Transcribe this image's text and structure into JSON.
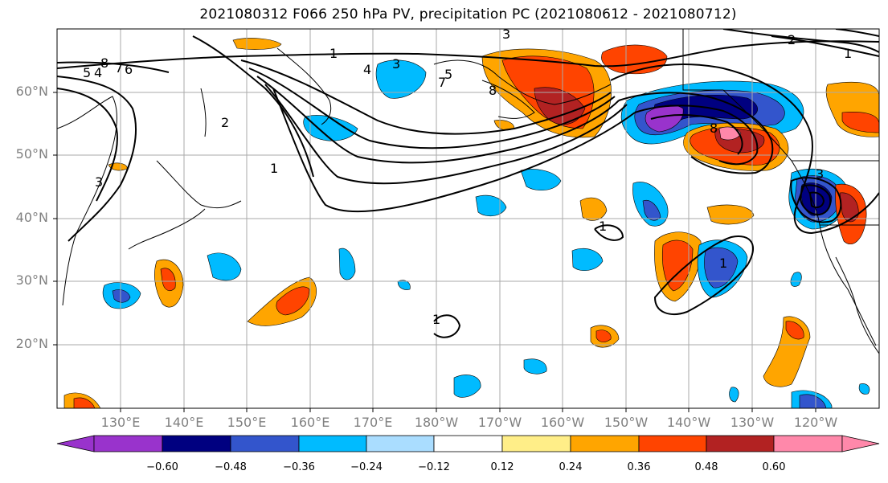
{
  "title": "2021080312 F066 250 hPa PV, precipitation PC (2021080612 - 2021080712)",
  "lat_labels": [
    "60°N",
    "50°N",
    "40°N",
    "30°N",
    "20°N"
  ],
  "lon_labels": [
    "130°E",
    "140°E",
    "150°E",
    "160°E",
    "170°E",
    "180°W",
    "170°W",
    "160°W",
    "150°W",
    "140°W",
    "130°W",
    "120°W"
  ],
  "colorbar": {
    "labels": [
      "−0.60",
      "−0.48",
      "−0.36",
      "−0.24",
      "−0.12",
      "0.12",
      "0.24",
      "0.36",
      "0.48",
      "0.60"
    ],
    "colors": [
      "#9933cc",
      "#000080",
      "#3355cc",
      "#00bbff",
      "#aaddff",
      "#ffffff",
      "#ffee88",
      "#ffa500",
      "#ff4400",
      "#b22222",
      "#ff88aa"
    ]
  },
  "contour_labels": [
    "1",
    "2",
    "3",
    "4",
    "5",
    "6",
    "7",
    "8"
  ],
  "palette": {
    "neg_strong": "#000080",
    "neg_mid": "#3355cc",
    "neg_light": "#00bbff",
    "neg_faint": "#aaddff",
    "pos_faint": "#ffee88",
    "pos_light": "#ffa500",
    "pos_mid": "#ff4400",
    "pos_strong": "#b22222",
    "pos_max": "#ff88aa",
    "neg_max": "#9933cc",
    "grid": "#aaaaaa",
    "axis_text": "#808080"
  }
}
